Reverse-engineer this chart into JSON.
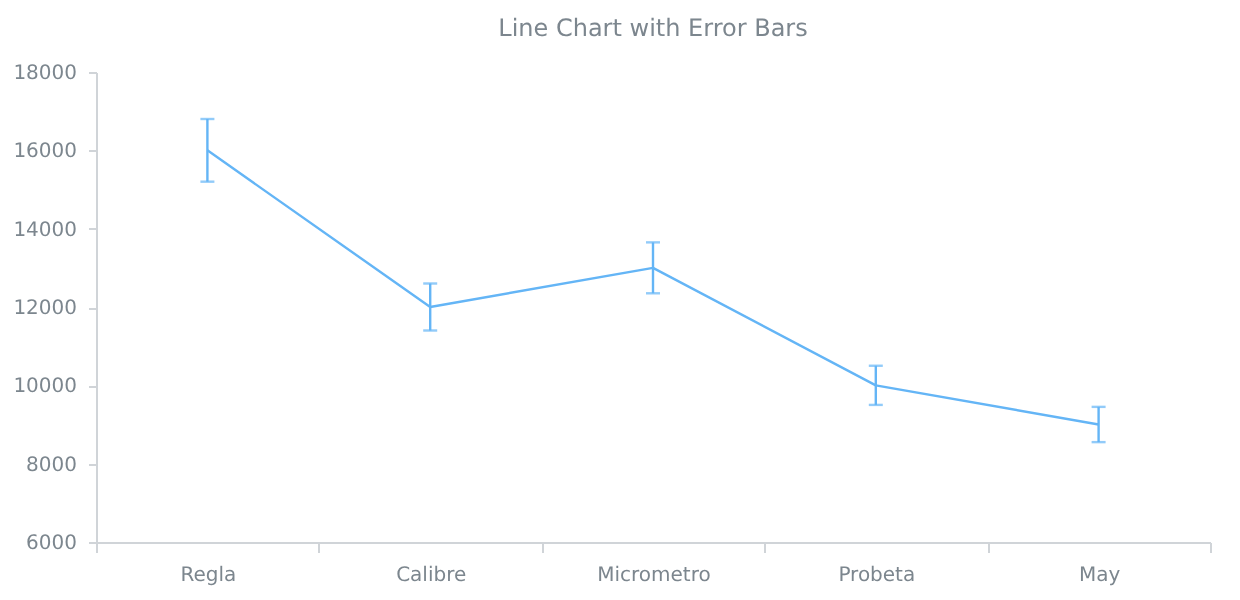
{
  "chart_data": {
    "type": "line",
    "title": "Line Chart with Error Bars",
    "categories": [
      "Regla",
      "Calibre",
      "Micrometro",
      "Probeta",
      "May"
    ],
    "series": [
      {
        "color": "#64b5f6",
        "values": [
          16000,
          12000,
          13000,
          10000,
          9000
        ],
        "errors": [
          800,
          600,
          650,
          500,
          450
        ]
      }
    ],
    "ylim": [
      6000,
      18000
    ],
    "yticks": [
      6000,
      8000,
      10000,
      12000,
      14000,
      16000,
      18000
    ],
    "marker": "none"
  }
}
